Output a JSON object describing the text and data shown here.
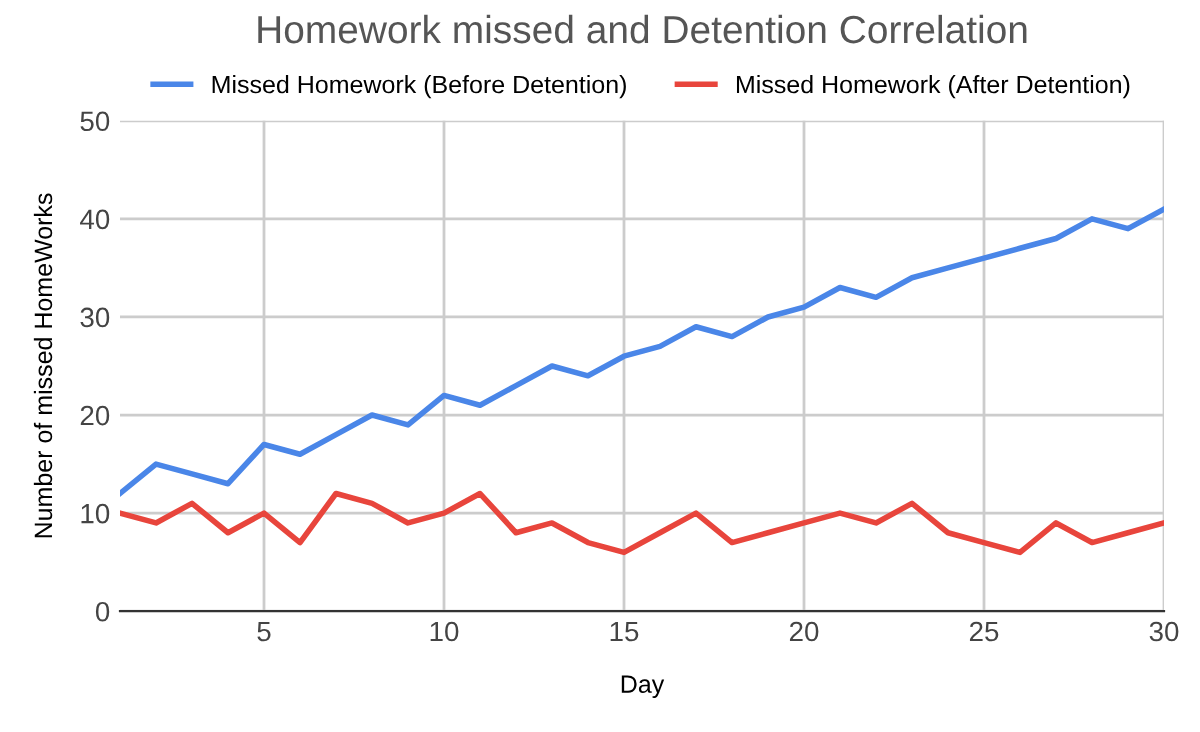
{
  "chart_data": {
    "type": "line",
    "title": "Homework missed and Detention Correlation",
    "xlabel": "Day",
    "ylabel": "Number of missed HomeWorks",
    "x": [
      1,
      2,
      3,
      4,
      5,
      6,
      7,
      8,
      9,
      10,
      11,
      12,
      13,
      14,
      15,
      16,
      17,
      18,
      19,
      20,
      21,
      22,
      23,
      24,
      25,
      26,
      27,
      28,
      29,
      30
    ],
    "series": [
      {
        "name": "Missed Homework (Before Detention)",
        "color": "#4a86e8",
        "values": [
          12,
          15,
          14,
          13,
          17,
          16,
          18,
          20,
          19,
          22,
          21,
          23,
          25,
          24,
          26,
          27,
          29,
          28,
          30,
          31,
          33,
          32,
          34,
          35,
          36,
          37,
          38,
          40,
          39,
          41
        ]
      },
      {
        "name": "Missed Homework (After Detention)",
        "color": "#e8453c",
        "values": [
          10,
          9,
          11,
          8,
          10,
          7,
          12,
          11,
          9,
          10,
          12,
          8,
          9,
          7,
          6,
          8,
          10,
          7,
          8,
          9,
          10,
          9,
          11,
          8,
          7,
          6,
          9,
          7,
          8,
          9
        ]
      }
    ],
    "xlim": [
      1,
      30
    ],
    "xticks": [
      5,
      10,
      15,
      20,
      25,
      30
    ],
    "ylim": [
      0,
      50
    ],
    "yticks": [
      0,
      10,
      20,
      30,
      40,
      50
    ],
    "grid": true,
    "legend": "top",
    "marker": "none",
    "line_style": "solid"
  }
}
